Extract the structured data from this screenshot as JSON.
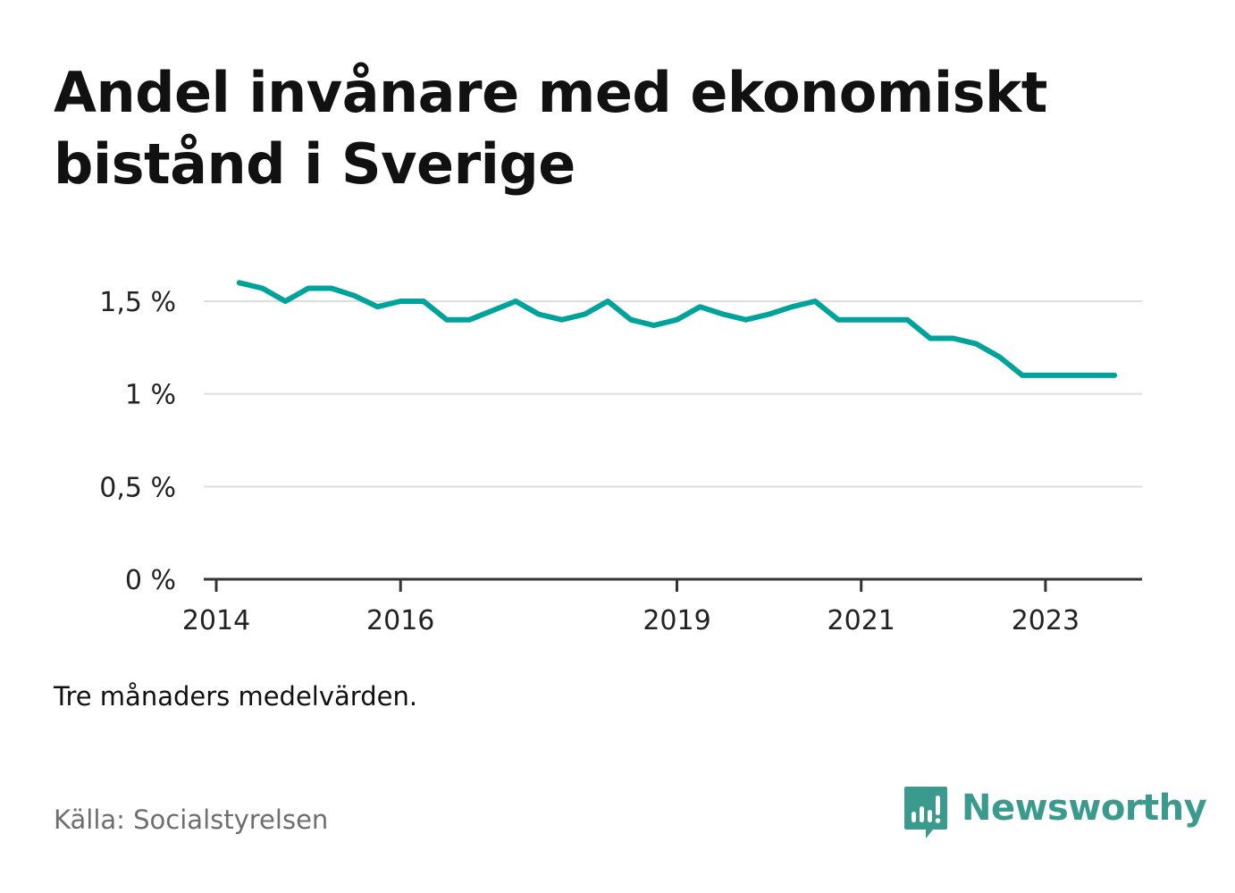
{
  "title": "Andel invånare med ekonomiskt bistånd i Sverige",
  "note": "Tre månaders medelvärden.",
  "source": "Källa: Socialstyrelsen",
  "brand": {
    "name": "Newsworthy",
    "icon": "newsworthy-logo-icon",
    "color": "#3a9a8e"
  },
  "chart_data": {
    "type": "line",
    "x": [
      "2014-04",
      "2014-07",
      "2014-10",
      "2015-01",
      "2015-04",
      "2015-07",
      "2015-10",
      "2016-01",
      "2016-04",
      "2016-07",
      "2016-10",
      "2017-01",
      "2017-04",
      "2017-07",
      "2017-10",
      "2018-01",
      "2018-04",
      "2018-07",
      "2018-10",
      "2019-01",
      "2019-04",
      "2019-07",
      "2019-10",
      "2020-01",
      "2020-04",
      "2020-07",
      "2020-10",
      "2021-01",
      "2021-04",
      "2021-07",
      "2021-10",
      "2022-01",
      "2022-04",
      "2022-07",
      "2022-10",
      "2023-01",
      "2023-04",
      "2023-07",
      "2023-10"
    ],
    "series": [
      {
        "values": [
          1.6,
          1.57,
          1.5,
          1.57,
          1.57,
          1.53,
          1.47,
          1.5,
          1.5,
          1.4,
          1.4,
          1.45,
          1.5,
          1.43,
          1.4,
          1.43,
          1.5,
          1.4,
          1.37,
          1.4,
          1.47,
          1.43,
          1.4,
          1.43,
          1.47,
          1.5,
          1.4,
          1.4,
          1.4,
          1.4,
          1.3,
          1.3,
          1.27,
          1.2,
          1.1,
          1.1,
          1.1,
          1.1,
          1.1
        ],
        "color": "#00a39b"
      }
    ],
    "x_ticks": [
      "2014",
      "2016",
      "2019",
      "2021",
      "2023"
    ],
    "y_ticks": [
      0,
      0.5,
      1,
      1.5
    ],
    "y_tick_labels": [
      "0 %",
      "0,5 %",
      "1 %",
      "1,5 %"
    ],
    "ylim": [
      0,
      1.5
    ],
    "xlim": [
      "2014-01",
      "2024-01"
    ],
    "grid": true,
    "grid_color": "#dddddd",
    "axis_color": "#333333"
  }
}
